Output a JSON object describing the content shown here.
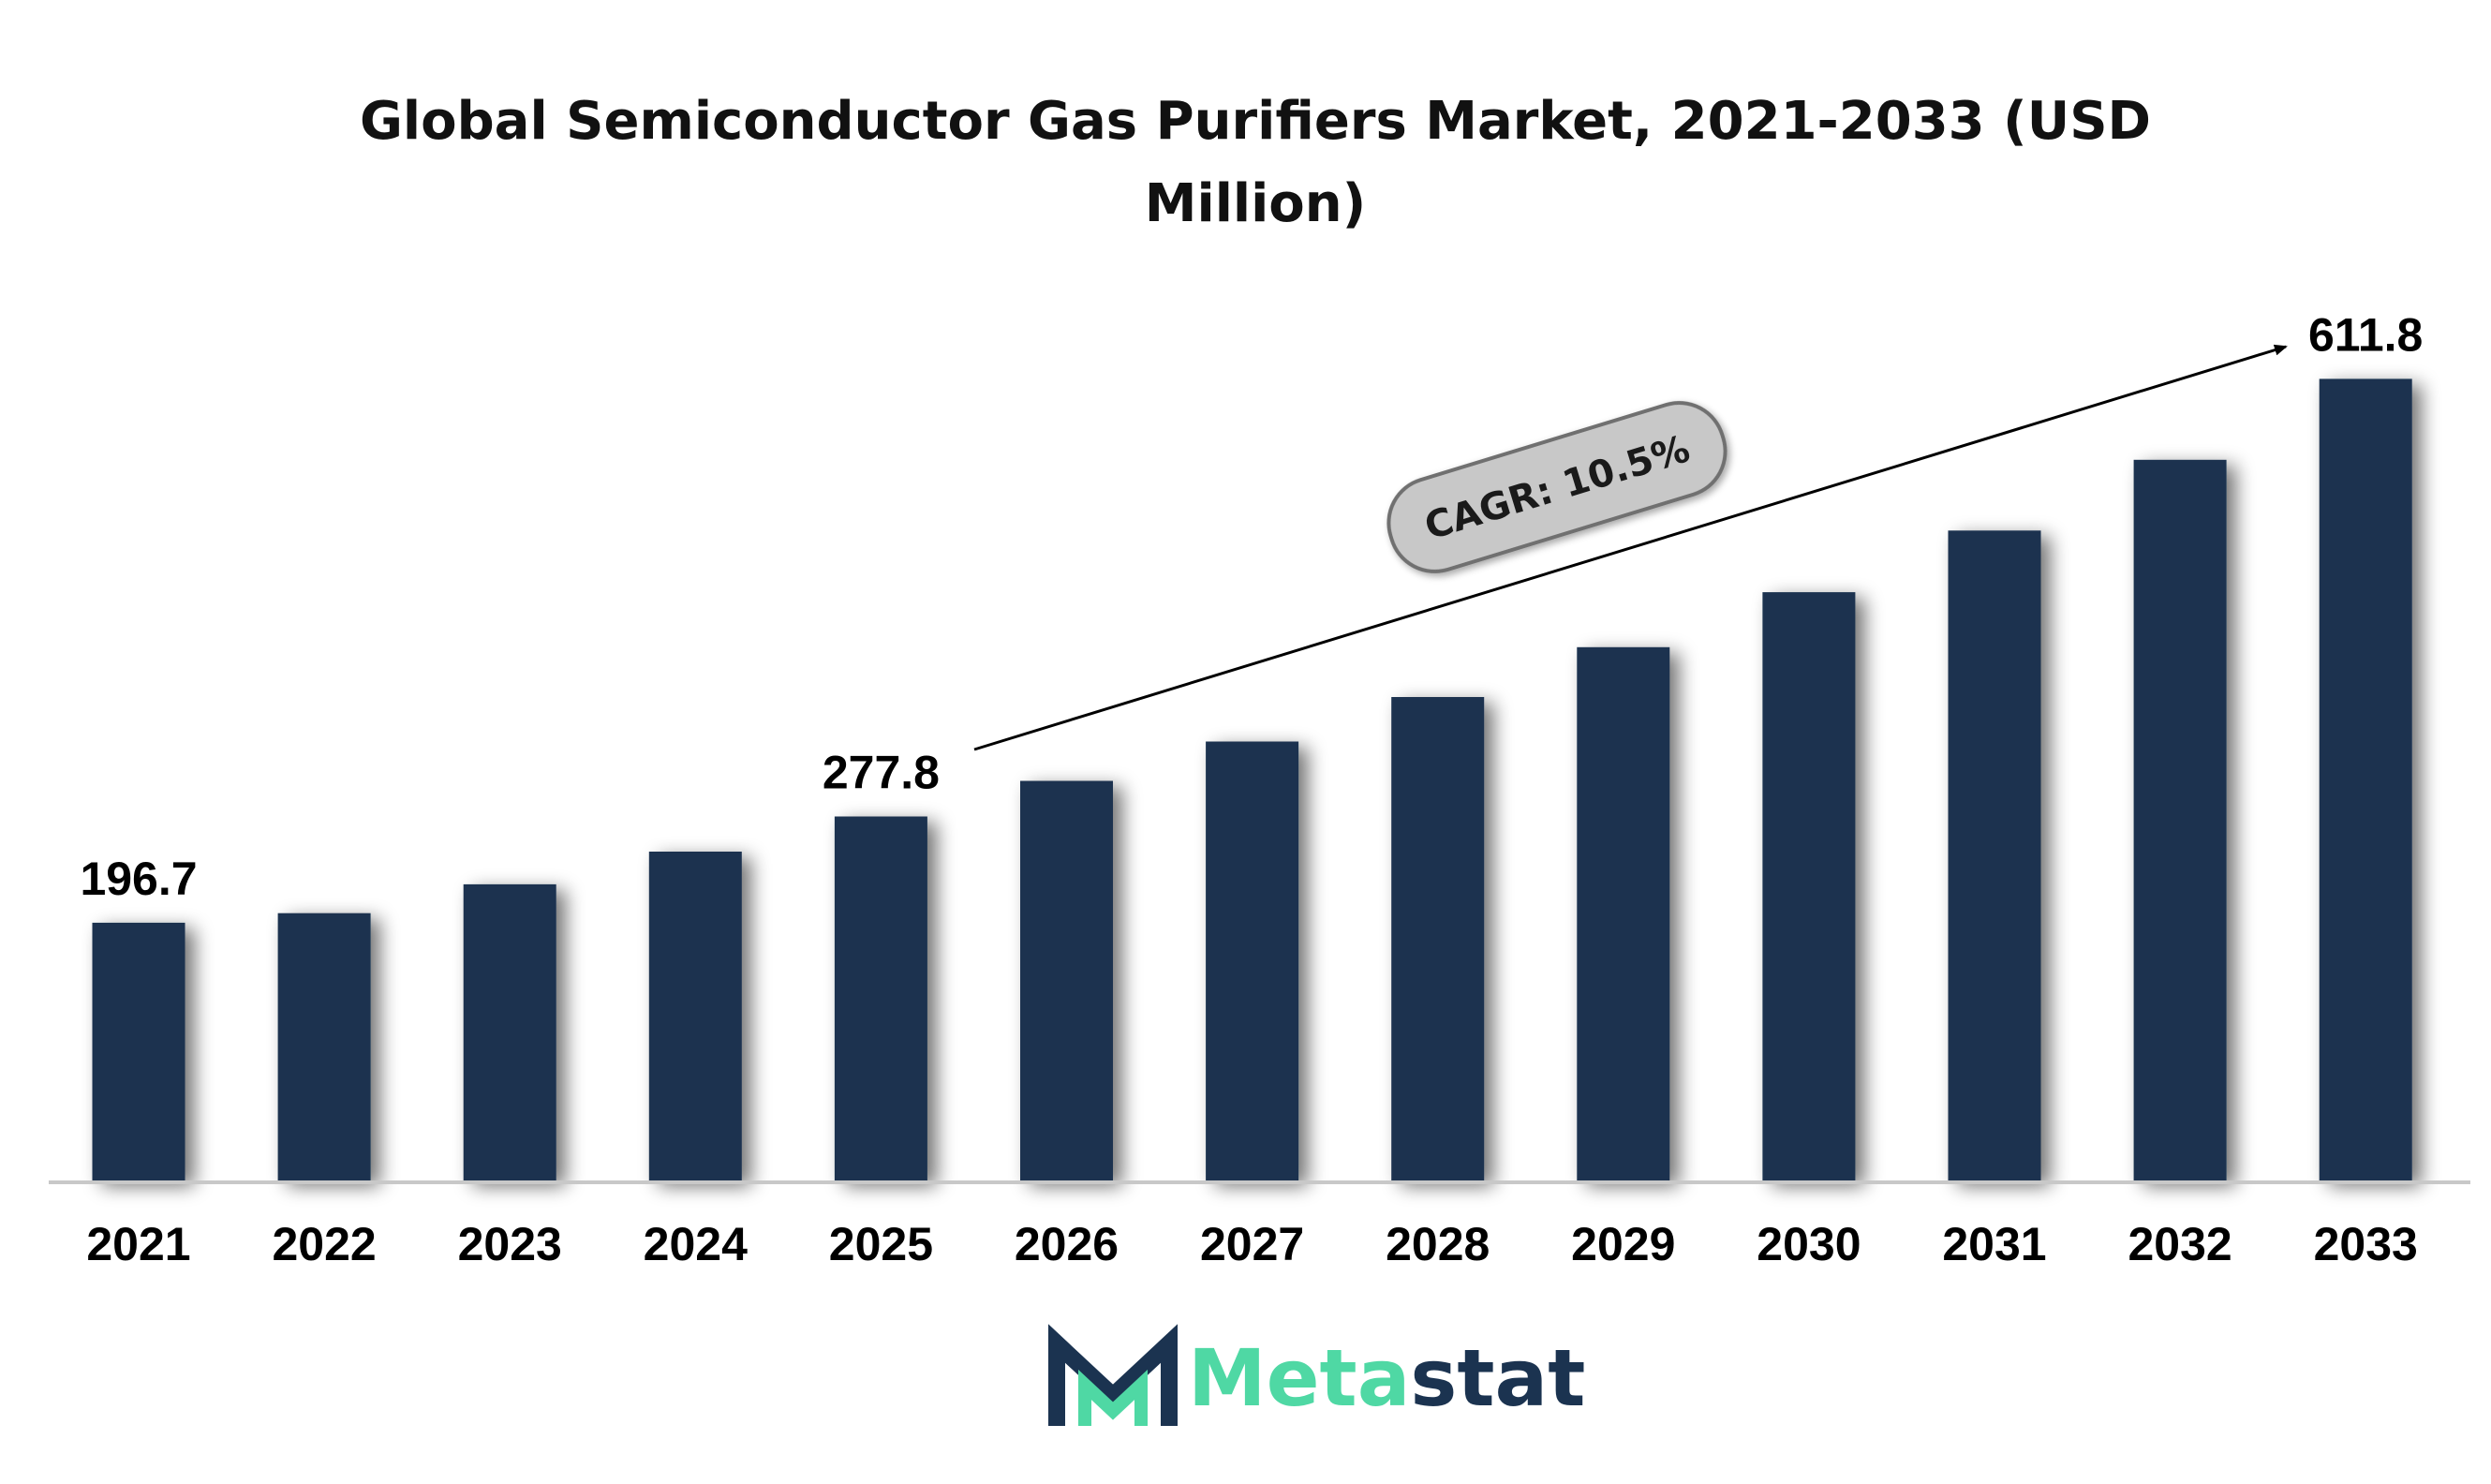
{
  "chart_data": {
    "type": "bar",
    "title": "Global Semiconductor Gas Purifiers Market, 2021-2033 (USD Million)",
    "title_lines": [
      "Global Semiconductor Gas Purifiers Market, 2021-2033 (USD",
      "Million)"
    ],
    "categories": [
      "2021",
      "2022",
      "2023",
      "2024",
      "2025",
      "2026",
      "2027",
      "2028",
      "2029",
      "2030",
      "2031",
      "2032",
      "2033"
    ],
    "values": [
      196.7,
      204.0,
      226.0,
      251.0,
      277.8,
      305.0,
      335.0,
      369.0,
      407.0,
      449.0,
      496.0,
      550.0,
      611.8
    ],
    "data_labels": {
      "2021": "196.7",
      "2025": "277.8",
      "2033": "611.8"
    },
    "annotation": "CAGR: 10.5%",
    "bar_color": "#1b3350",
    "ylim": [
      0,
      650
    ],
    "grid": false,
    "legend": "none",
    "xlabel": "",
    "ylabel": ""
  },
  "logo": {
    "text_part1": "Meta",
    "text_part2": "stat",
    "color_primary": "#4fd8a4",
    "color_dark": "#1b3350"
  }
}
